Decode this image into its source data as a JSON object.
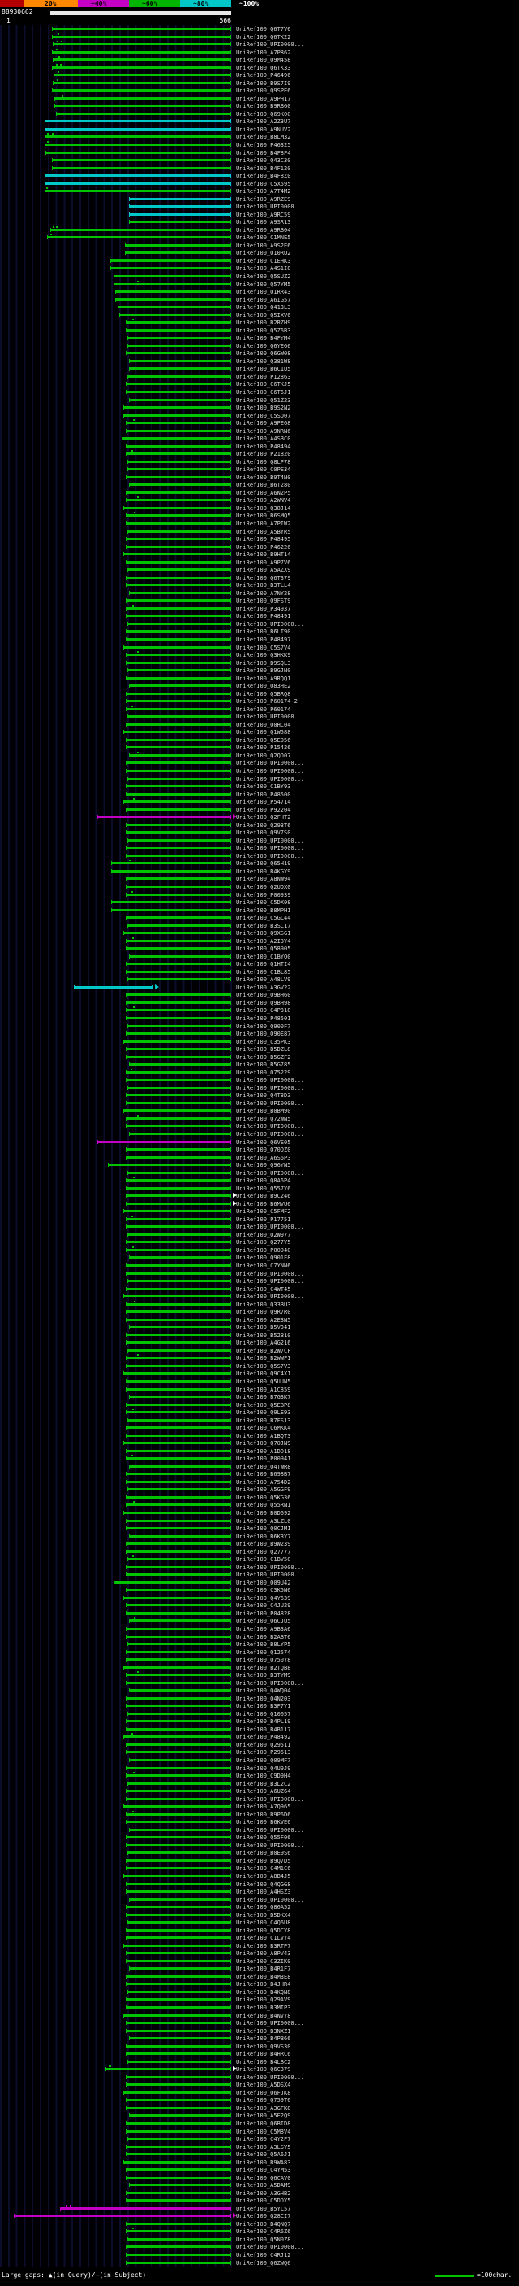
{
  "chart_data": {
    "type": "bar",
    "subtype": "blast-hit-overview",
    "orientation": "horizontal",
    "query_id": "88930662",
    "query_length": 566,
    "x_axis": {
      "start_label": "1",
      "end_label": "566"
    },
    "identity_scale": {
      "labels": [
        "20%",
        "~40%",
        "~60%",
        "~80%",
        "~100%"
      ],
      "segment_colors": [
        "#b40000",
        "#ff8800",
        "#c400c4",
        "#00b400",
        "#00c8c8"
      ]
    },
    "color_key": {
      "g": "#00c400",
      "c": "#00c8c8",
      "m": "#c400c4",
      "w": "#ffffff"
    },
    "label_prefix": "UniRef100_",
    "hits": [
      {
        "l": "Q6T7V6",
        "s": 116
      },
      {
        "l": "Q6TK22",
        "s": 116,
        "g": [
          130
        ]
      },
      {
        "l": "UPI0000...",
        "s": 118,
        "g": [
          128,
          138
        ]
      },
      {
        "l": "A7P862",
        "s": 116,
        "g": [
          126
        ]
      },
      {
        "l": "Q9M458",
        "s": 118,
        "g": [
          132
        ]
      },
      {
        "l": "Q6TK33",
        "s": 116,
        "g": [
          126,
          136
        ]
      },
      {
        "l": "P46496",
        "s": 120,
        "g": [
          130
        ]
      },
      {
        "l": "B9S7I9",
        "s": 118,
        "g": [
          128
        ]
      },
      {
        "l": "Q9SPE6",
        "s": 116
      },
      {
        "l": "A9PH17",
        "s": 122,
        "g": [
          140
        ]
      },
      {
        "l": "B9RB60",
        "s": 122
      },
      {
        "l": "Q69K00",
        "s": 126
      },
      {
        "l": "A2Z3U7",
        "s": 96,
        "c": "c"
      },
      {
        "l": "A9NUV2",
        "s": 96,
        "c": "c"
      },
      {
        "l": "B8LM32",
        "s": 96,
        "g": [
          104,
          116
        ]
      },
      {
        "l": "P46325",
        "s": 96,
        "g": [
          102
        ]
      },
      {
        "l": "B4F8F4",
        "s": 98
      },
      {
        "l": "Q43C30",
        "s": 116
      },
      {
        "l": "B4F120",
        "s": 116
      },
      {
        "l": "B4F8Z0",
        "s": 96,
        "c": "c"
      },
      {
        "l": "C5X595",
        "s": 96,
        "c": "c"
      },
      {
        "l": "A7T4M2",
        "s": 96,
        "g": [
          100
        ]
      },
      {
        "l": "A9RZE9",
        "s": 308,
        "c": "c"
      },
      {
        "l": "UPI0000...",
        "s": 308,
        "c": "c"
      },
      {
        "l": "A9RC59",
        "s": 308,
        "c": "c"
      },
      {
        "l": "A9SR13",
        "s": 308
      },
      {
        "l": "A9RB04",
        "s": 112,
        "g": [
          118,
          126
        ]
      },
      {
        "l": "C1MNE5",
        "s": 104,
        "g": [
          112
        ]
      },
      {
        "l": "A9S2E6",
        "s": 298
      },
      {
        "l": "Q10RU2",
        "s": 298
      },
      {
        "l": "C1EHK3",
        "s": 262
      },
      {
        "l": "A4S1I8",
        "s": 262
      },
      {
        "l": "Q5SUZ2",
        "s": 270
      },
      {
        "l": "Q57YM5",
        "s": 270,
        "g": [
          330
        ]
      },
      {
        "l": "Q1RR43",
        "s": 275
      },
      {
        "l": "A6IG57",
        "s": 275
      },
      {
        "l": "Q413L3",
        "s": 280
      },
      {
        "l": "Q5IXV6",
        "s": 285
      },
      {
        "l": "B2RZH9",
        "s": 300,
        "g": [
          318
        ]
      },
      {
        "l": "Q5Z6B3",
        "s": 300
      },
      {
        "l": "B4FYM4",
        "s": 305
      },
      {
        "l": "Q6YE66",
        "s": 305
      },
      {
        "l": "Q6GW08",
        "s": 300
      },
      {
        "l": "Q381W8",
        "s": 310
      },
      {
        "l": "B6C1U5",
        "s": 310
      },
      {
        "l": "P12863",
        "s": 305
      },
      {
        "l": "C6TKJ5",
        "s": 300
      },
      {
        "l": "C6T6J1",
        "s": 300
      },
      {
        "l": "Q51Z23",
        "s": 310
      },
      {
        "l": "B9S2N2",
        "s": 295
      },
      {
        "l": "C5SQ07",
        "s": 295
      },
      {
        "l": "A9PE68",
        "s": 300,
        "g": [
          320
        ]
      },
      {
        "l": "A9NRN6",
        "s": 300
      },
      {
        "l": "A4SBC0",
        "s": 290
      },
      {
        "l": "P48494",
        "s": 300
      },
      {
        "l": "P21820",
        "s": 300,
        "g": [
          316
        ]
      },
      {
        "l": "Q8LP78",
        "s": 305
      },
      {
        "l": "C0PE34",
        "s": 305
      },
      {
        "l": "B9T4N0",
        "s": 300
      },
      {
        "l": "B6T280",
        "s": 310
      },
      {
        "l": "A6N2P5",
        "s": 300
      },
      {
        "l": "A2WNV4",
        "s": 300,
        "g": [
          330
        ]
      },
      {
        "l": "Q38J14",
        "s": 295
      },
      {
        "l": "B6SMQ5",
        "s": 300,
        "g": [
          322
        ]
      },
      {
        "l": "A7PIW2",
        "s": 300
      },
      {
        "l": "A5BYR5",
        "s": 305
      },
      {
        "l": "P48495",
        "s": 300
      },
      {
        "l": "P46226",
        "s": 300
      },
      {
        "l": "B9HT14",
        "s": 295
      },
      {
        "l": "A9P7V6",
        "s": 300
      },
      {
        "l": "A5AZX9",
        "s": 305
      },
      {
        "l": "Q6T379",
        "s": 300
      },
      {
        "l": "B3TLL4",
        "s": 300
      },
      {
        "l": "A7NY28",
        "s": 310
      },
      {
        "l": "Q9FST9",
        "s": 300
      },
      {
        "l": "P34937",
        "s": 300,
        "g": [
          318
        ]
      },
      {
        "l": "P48491",
        "s": 300
      },
      {
        "l": "UPI0000...",
        "s": 305
      },
      {
        "l": "B6LT90",
        "s": 300
      },
      {
        "l": "P48497",
        "s": 300
      },
      {
        "l": "C5S7V4",
        "s": 295
      },
      {
        "l": "Q3HKK9",
        "s": 300,
        "g": [
          330
        ]
      },
      {
        "l": "B9SQL3",
        "s": 300
      },
      {
        "l": "B9GJN0",
        "s": 305
      },
      {
        "l": "A9RQQ1",
        "s": 300
      },
      {
        "l": "Q83HE2",
        "s": 310
      },
      {
        "l": "Q5BRQ8",
        "s": 300
      },
      {
        "l": "P60174-2",
        "s": 300
      },
      {
        "l": "P60174",
        "s": 300,
        "g": [
          316
        ]
      },
      {
        "l": "UPI0000...",
        "s": 305
      },
      {
        "l": "Q0HC04",
        "s": 300
      },
      {
        "l": "Q1W588",
        "s": 295
      },
      {
        "l": "Q5E956",
        "s": 300
      },
      {
        "l": "P15426",
        "s": 300
      },
      {
        "l": "Q2QD07",
        "s": 310,
        "g": [
          330
        ]
      },
      {
        "l": "UPI0000...",
        "s": 300
      },
      {
        "l": "UPI0000...",
        "s": 300
      },
      {
        "l": "UPI0000...",
        "s": 305
      },
      {
        "l": "C1BY93",
        "s": 300
      },
      {
        "l": "P48500",
        "s": 300
      },
      {
        "l": "P54714",
        "s": 295,
        "g": [
          320
        ]
      },
      {
        "l": "P92204",
        "s": 300
      },
      {
        "l": "Q2FHT2",
        "s": 230,
        "c": "m",
        "a": "m"
      },
      {
        "l": "Q293T6",
        "s": 300
      },
      {
        "l": "Q9V7S0",
        "s": 300
      },
      {
        "l": "UPI0000...",
        "s": 305
      },
      {
        "l": "UPI0000...",
        "s": 300
      },
      {
        "l": "UPI0000...",
        "s": 300
      },
      {
        "l": "Q65H19",
        "s": 265,
        "g": [
          310
        ]
      },
      {
        "l": "B4KGY9",
        "s": 265
      },
      {
        "l": "A8NW94",
        "s": 300
      },
      {
        "l": "Q2UDX0",
        "s": 300
      },
      {
        "l": "P00939",
        "s": 300,
        "g": [
          316
        ]
      },
      {
        "l": "C5DX08",
        "s": 265
      },
      {
        "l": "B8MPH1",
        "s": 265
      },
      {
        "l": "C5GL44",
        "s": 300
      },
      {
        "l": "B3SC17",
        "s": 305
      },
      {
        "l": "Q9XSG1",
        "s": 295
      },
      {
        "l": "A2I3Y4",
        "s": 300,
        "g": [
          318
        ]
      },
      {
        "l": "Q58905",
        "s": 300
      },
      {
        "l": "C1BYQ0",
        "s": 310
      },
      {
        "l": "Q1HTI4",
        "s": 300
      },
      {
        "l": "C1BL85",
        "s": 300
      },
      {
        "l": "A48LV9",
        "s": 305
      },
      {
        "l": "A3GV22",
        "s": 170,
        "e": 370,
        "c": "c",
        "a": "c"
      },
      {
        "l": "Q9BH60",
        "s": 300
      },
      {
        "l": "Q9BH98",
        "s": 300
      },
      {
        "l": "C4P318",
        "s": 300,
        "g": [
          320
        ]
      },
      {
        "l": "P48501",
        "s": 300
      },
      {
        "l": "Q900F7",
        "s": 305
      },
      {
        "l": "Q90E87",
        "s": 300
      },
      {
        "l": "C35PK3",
        "s": 295
      },
      {
        "l": "B5DZL8",
        "s": 300
      },
      {
        "l": "B5GZF2",
        "s": 300
      },
      {
        "l": "B5G785",
        "s": 310
      },
      {
        "l": "O75229",
        "s": 300,
        "g": [
          314
        ]
      },
      {
        "l": "UPI0000...",
        "s": 300
      },
      {
        "l": "UPI0000...",
        "s": 305
      },
      {
        "l": "Q4T8D3",
        "s": 300
      },
      {
        "l": "UPI0000...",
        "s": 300
      },
      {
        "l": "B0BM90",
        "s": 295
      },
      {
        "l": "Q72WN5",
        "s": 300,
        "g": [
          330
        ]
      },
      {
        "l": "UPI0000...",
        "s": 300
      },
      {
        "l": "UPI0000...",
        "s": 310
      },
      {
        "l": "Q6VE05",
        "s": 230,
        "c": "m"
      },
      {
        "l": "Q70DZ0",
        "s": 300
      },
      {
        "l": "A6S6P3",
        "s": 300
      },
      {
        "l": "Q96YN5",
        "s": 255
      },
      {
        "l": "UPI0000...",
        "s": 305
      },
      {
        "l": "Q8A6P4",
        "s": 300,
        "g": [
          320
        ]
      },
      {
        "l": "Q557Y6",
        "s": 300
      },
      {
        "l": "B9C246",
        "s": 300,
        "a": "w"
      },
      {
        "l": "B6MVU6",
        "s": 300,
        "a": "w"
      },
      {
        "l": "C5FMF2",
        "s": 295
      },
      {
        "l": "P17751",
        "s": 300,
        "g": [
          316
        ]
      },
      {
        "l": "UPI0000...",
        "s": 300
      },
      {
        "l": "Q2W977",
        "s": 305
      },
      {
        "l": "Q277Y5",
        "s": 300
      },
      {
        "l": "P00940",
        "s": 300,
        "g": [
          318
        ]
      },
      {
        "l": "Q901F8",
        "s": 310
      },
      {
        "l": "C7YNN6",
        "s": 300
      },
      {
        "l": "UPI0000...",
        "s": 300
      },
      {
        "l": "UPI0000...",
        "s": 305
      },
      {
        "l": "C4WT45",
        "s": 300
      },
      {
        "l": "UPI0000...",
        "s": 295
      },
      {
        "l": "Q33BU3",
        "s": 300,
        "g": [
          322
        ]
      },
      {
        "l": "Q9R7R0",
        "s": 300
      },
      {
        "l": "A2E3N5",
        "s": 300
      },
      {
        "l": "B5VD41",
        "s": 310
      },
      {
        "l": "B52B10",
        "s": 300
      },
      {
        "l": "A4G216",
        "s": 300
      },
      {
        "l": "B2W7CF",
        "s": 305
      },
      {
        "l": "B2WWF1",
        "s": 300,
        "g": [
          330
        ]
      },
      {
        "l": "Q5S7V3",
        "s": 300
      },
      {
        "l": "Q9C4X1",
        "s": 295
      },
      {
        "l": "Q5UUN5",
        "s": 300
      },
      {
        "l": "A1C859",
        "s": 300
      },
      {
        "l": "B7G3K7",
        "s": 310
      },
      {
        "l": "Q5EBP8",
        "s": 300
      },
      {
        "l": "Q9LE93",
        "s": 300,
        "g": [
          318
        ]
      },
      {
        "l": "B7FS13",
        "s": 305
      },
      {
        "l": "C6MKK4",
        "s": 300
      },
      {
        "l": "A1BQT3",
        "s": 300
      },
      {
        "l": "Q70JN9",
        "s": 295
      },
      {
        "l": "A1DD18",
        "s": 300
      },
      {
        "l": "P00941",
        "s": 300,
        "g": [
          316
        ]
      },
      {
        "l": "Q4TWR8",
        "s": 310
      },
      {
        "l": "B698B7",
        "s": 300
      },
      {
        "l": "A754D2",
        "s": 300
      },
      {
        "l": "A5GGF9",
        "s": 305
      },
      {
        "l": "Q5KG36",
        "s": 300
      },
      {
        "l": "Q55RN1",
        "s": 300,
        "g": [
          320
        ]
      },
      {
        "l": "B0D692",
        "s": 295
      },
      {
        "l": "A3LZL0",
        "s": 300
      },
      {
        "l": "Q0CJM1",
        "s": 300
      },
      {
        "l": "B6K3Y7",
        "s": 310
      },
      {
        "l": "B9W239",
        "s": 300
      },
      {
        "l": "Q27777",
        "s": 300
      },
      {
        "l": "C1BV50",
        "s": 305,
        "g": [
          318
        ]
      },
      {
        "l": "UPI0000...",
        "s": 300
      },
      {
        "l": "UPI0000...",
        "s": 300
      },
      {
        "l": "Q09U42",
        "s": 270
      },
      {
        "l": "C3K5N6",
        "s": 300
      },
      {
        "l": "Q4Y639",
        "s": 295
      },
      {
        "l": "C4JU29",
        "s": 300
      },
      {
        "l": "P04828",
        "s": 300
      },
      {
        "l": "Q6CJU5",
        "s": 310,
        "g": [
          322
        ]
      },
      {
        "l": "A9B3A6",
        "s": 300
      },
      {
        "l": "B2ABT6",
        "s": 300
      },
      {
        "l": "B8LYP5",
        "s": 305
      },
      {
        "l": "Q12574",
        "s": 300
      },
      {
        "l": "Q750Y8",
        "s": 300
      },
      {
        "l": "B2TQB8",
        "s": 295
      },
      {
        "l": "B3TYM9",
        "s": 300,
        "g": [
          330
        ]
      },
      {
        "l": "UPI0000...",
        "s": 300
      },
      {
        "l": "Q4WQ04",
        "s": 310
      },
      {
        "l": "Q4N203",
        "s": 300
      },
      {
        "l": "B3F7Y1",
        "s": 300
      },
      {
        "l": "Q10057",
        "s": 305
      },
      {
        "l": "B4PL19",
        "s": 300
      },
      {
        "l": "B4B117",
        "s": 300
      },
      {
        "l": "P48492",
        "s": 295,
        "g": [
          316
        ]
      },
      {
        "l": "Q29511",
        "s": 300
      },
      {
        "l": "P29613",
        "s": 300
      },
      {
        "l": "Q09MF7",
        "s": 310
      },
      {
        "l": "Q4U9J9",
        "s": 300
      },
      {
        "l": "C9D9H4",
        "s": 300,
        "g": [
          320
        ]
      },
      {
        "l": "B3L2C2",
        "s": 305
      },
      {
        "l": "A6UZ64",
        "s": 300
      },
      {
        "l": "UPI0000...",
        "s": 300
      },
      {
        "l": "A7Q965",
        "s": 295
      },
      {
        "l": "B9P6D6",
        "s": 300,
        "g": [
          318
        ]
      },
      {
        "l": "B6KVE6",
        "s": 300
      },
      {
        "l": "UPI0000...",
        "s": 310
      },
      {
        "l": "Q55F06",
        "s": 300
      },
      {
        "l": "UPI0000...",
        "s": 300
      },
      {
        "l": "B0E9S6",
        "s": 305
      },
      {
        "l": "B9Q7D5",
        "s": 300
      },
      {
        "l": "C4M1C6",
        "s": 300
      },
      {
        "l": "A8B4J5",
        "s": 295
      },
      {
        "l": "Q4QGG8",
        "s": 300
      },
      {
        "l": "A4HSZ3",
        "s": 300
      },
      {
        "l": "UPI0000...",
        "s": 310
      },
      {
        "l": "Q86A52",
        "s": 300
      },
      {
        "l": "B5DKX4",
        "s": 300
      },
      {
        "l": "C4Q6U8",
        "s": 305
      },
      {
        "l": "Q5DCY8",
        "s": 300
      },
      {
        "l": "C1LVY4",
        "s": 300
      },
      {
        "l": "B3RTP7",
        "s": 295
      },
      {
        "l": "A8PV43",
        "s": 300
      },
      {
        "l": "C3ZIK0",
        "s": 300
      },
      {
        "l": "B4R1F7",
        "s": 310
      },
      {
        "l": "B4M3E8",
        "s": 300
      },
      {
        "l": "B4JHR4",
        "s": 300
      },
      {
        "l": "B4KQN8",
        "s": 305
      },
      {
        "l": "Q29AV9",
        "s": 300
      },
      {
        "l": "B3MIP3",
        "s": 300
      },
      {
        "l": "B4NVY8",
        "s": 295
      },
      {
        "l": "UPI0000...",
        "s": 300
      },
      {
        "l": "B3NXZ1",
        "s": 300
      },
      {
        "l": "B4PB66",
        "s": 310
      },
      {
        "l": "Q9VS30",
        "s": 300
      },
      {
        "l": "B4HRC6",
        "s": 300
      },
      {
        "l": "B4LBC2",
        "s": 305
      },
      {
        "l": "Q6C379",
        "s": 250,
        "g": [
          260
        ],
        "a": "w"
      },
      {
        "l": "UPI0000...",
        "s": 300
      },
      {
        "l": "A5DSX4",
        "s": 300
      },
      {
        "l": "Q6FJK8",
        "s": 295
      },
      {
        "l": "Q759T6",
        "s": 300
      },
      {
        "l": "A3GFK8",
        "s": 300
      },
      {
        "l": "A5E2Q9",
        "s": 310
      },
      {
        "l": "Q6BID8",
        "s": 300
      },
      {
        "l": "C5M8V4",
        "s": 300
      },
      {
        "l": "C4Y2F7",
        "s": 305
      },
      {
        "l": "A3LSY5",
        "s": 300
      },
      {
        "l": "Q5A6J1",
        "s": 300
      },
      {
        "l": "B9WA83",
        "s": 295
      },
      {
        "l": "C4YM53",
        "s": 300
      },
      {
        "l": "Q6CAV0",
        "s": 300
      },
      {
        "l": "A5DAM9",
        "s": 310
      },
      {
        "l": "A3GHB2",
        "s": 300
      },
      {
        "l": "C5DDY5",
        "s": 300
      },
      {
        "l": "B5YL57",
        "s": 135,
        "c": "m",
        "g": [
          150,
          160
        ]
      },
      {
        "l": "Q28CI7",
        "s": 20,
        "c": "m",
        "a": "m"
      },
      {
        "l": "B4QNQ7",
        "s": 300
      },
      {
        "l": "C4R6Z6",
        "s": 300,
        "g": [
          318
        ]
      },
      {
        "l": "Q5N0Z8",
        "s": 305
      },
      {
        "l": "UPI0000...",
        "s": 300
      },
      {
        "l": "C4RJ12",
        "s": 300
      },
      {
        "l": "Q6ZWQ6",
        "s": 300
      }
    ]
  },
  "legend": {
    "gaps_text": "Large gaps: ▲(in Query)/—(in Subject)",
    "scale_text": "=100char.",
    "scale_bar_chars": 100
  }
}
